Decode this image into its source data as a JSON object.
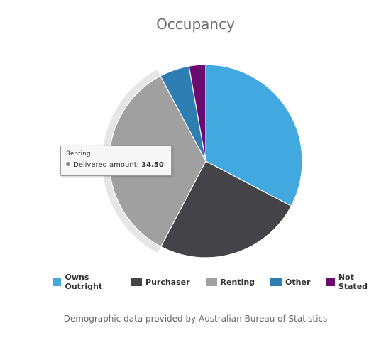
{
  "chart_data": {
    "type": "pie",
    "title": "Occupancy",
    "categories": [
      "Owns Outright",
      "Purchaser",
      "Renting",
      "Other",
      "Not Stated"
    ],
    "values": [
      32.7,
      25.0,
      34.5,
      5.0,
      2.8
    ],
    "colors": [
      "#42a9e0",
      "#434348",
      "#a0a0a0",
      "#2f7eb3",
      "#6b0b6f"
    ],
    "hovered": "Renting",
    "legend_position": "bottom"
  },
  "tooltip": {
    "series": "Renting",
    "label": "Delivered amount:",
    "value": "34.50"
  },
  "credits": "Demographic data provided by Australian Bureau of Statistics"
}
